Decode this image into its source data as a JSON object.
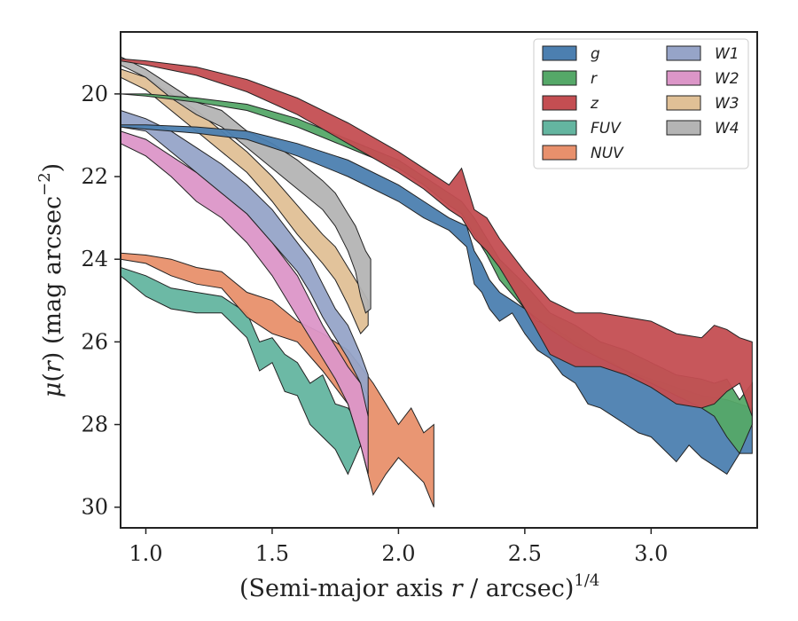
{
  "chart_data": {
    "type": "area",
    "xlabel": "(Semi-major axis r / arcsec)^1/4",
    "ylabel": "μ(r) (mag arcsec^−2)",
    "xlim": [
      0.9,
      3.42
    ],
    "ylim": [
      30.5,
      18.5
    ],
    "y_inverted": true,
    "grid": false,
    "legend_placement": "top-right",
    "xticks": [
      "1.0",
      "1.5",
      "2.0",
      "2.5",
      "3.0"
    ],
    "yticks": [
      "20",
      "22",
      "24",
      "26",
      "28",
      "30"
    ],
    "series": [
      {
        "name": "g",
        "color": "#4c7fb0",
        "x": [
          0.9,
          1.0,
          1.2,
          1.4,
          1.6,
          1.8,
          2.0,
          2.1,
          2.2,
          2.27,
          2.3,
          2.33,
          2.36,
          2.4,
          2.45,
          2.5,
          2.55,
          2.6,
          2.65,
          2.7,
          2.75,
          2.8,
          2.85,
          2.9,
          2.95,
          3.0,
          3.05,
          3.1,
          3.15,
          3.2,
          3.25,
          3.3,
          3.35,
          3.4
        ],
        "y_upper": [
          20.75,
          20.75,
          20.8,
          20.9,
          21.2,
          21.6,
          22.2,
          22.6,
          23.0,
          23.2,
          23.8,
          24.1,
          24.5,
          24.8,
          25.0,
          25.2,
          25.5,
          25.6,
          25.8,
          26.0,
          26.2,
          26.4,
          26.5,
          26.7,
          26.8,
          26.9,
          27.0,
          27.1,
          27.2,
          27.3,
          27.35,
          27.4,
          27.5,
          27.6
        ],
        "y_lower": [
          20.8,
          20.85,
          20.95,
          21.1,
          21.5,
          22.0,
          22.6,
          23.0,
          23.3,
          23.7,
          24.6,
          24.8,
          25.2,
          25.5,
          25.3,
          25.8,
          26.2,
          26.4,
          26.8,
          27.0,
          27.5,
          27.6,
          27.8,
          28.0,
          28.2,
          28.3,
          28.6,
          28.9,
          28.5,
          28.8,
          29.0,
          29.2,
          28.7,
          28.7
        ]
      },
      {
        "name": "r",
        "color": "#55a868",
        "x": [
          0.9,
          1.0,
          1.2,
          1.4,
          1.6,
          1.8,
          2.0,
          2.1,
          2.2,
          2.25,
          2.3,
          2.35,
          2.4,
          2.5,
          2.6,
          2.7,
          2.8,
          2.9,
          3.0,
          3.1,
          3.2,
          3.25,
          3.3,
          3.35,
          3.4
        ],
        "y_upper": [
          20.0,
          20.0,
          20.1,
          20.25,
          20.6,
          21.1,
          21.6,
          22.0,
          22.4,
          22.6,
          23.0,
          23.5,
          24.0,
          24.6,
          25.3,
          25.6,
          26.0,
          26.2,
          26.5,
          26.8,
          26.9,
          27.0,
          26.9,
          27.4,
          27.0
        ],
        "y_lower": [
          20.0,
          20.05,
          20.2,
          20.4,
          20.8,
          21.3,
          21.8,
          22.2,
          22.7,
          22.9,
          23.4,
          23.9,
          24.5,
          25.2,
          25.7,
          26.1,
          26.4,
          26.7,
          27.0,
          27.3,
          27.6,
          27.8,
          28.3,
          28.7,
          28.0
        ]
      },
      {
        "name": "z",
        "color": "#c44e52",
        "x": [
          0.9,
          1.0,
          1.2,
          1.4,
          1.6,
          1.8,
          2.0,
          2.1,
          2.2,
          2.25,
          2.3,
          2.35,
          2.4,
          2.5,
          2.6,
          2.7,
          2.8,
          2.9,
          3.0,
          3.1,
          3.2,
          3.25,
          3.3,
          3.35,
          3.4
        ],
        "y_upper": [
          19.15,
          19.2,
          19.35,
          19.65,
          20.1,
          20.7,
          21.4,
          21.8,
          22.2,
          21.8,
          22.8,
          23.0,
          23.5,
          24.3,
          25.0,
          25.3,
          25.3,
          25.4,
          25.5,
          25.8,
          25.9,
          25.6,
          25.7,
          25.9,
          26.0
        ],
        "y_lower": [
          19.2,
          19.3,
          19.55,
          19.95,
          20.5,
          21.2,
          21.9,
          22.3,
          22.8,
          23.0,
          23.5,
          23.8,
          24.2,
          25.2,
          26.3,
          26.6,
          26.6,
          26.8,
          27.1,
          27.5,
          27.6,
          27.5,
          27.2,
          27.0,
          27.8
        ]
      },
      {
        "name": "FUV",
        "color": "#64b5a0",
        "x": [
          0.9,
          1.0,
          1.1,
          1.2,
          1.3,
          1.4,
          1.45,
          1.5,
          1.55,
          1.6,
          1.65,
          1.7,
          1.75,
          1.8,
          1.85
        ],
        "y_upper": [
          24.2,
          24.4,
          24.7,
          24.8,
          24.9,
          25.3,
          26.0,
          25.9,
          26.3,
          26.5,
          27.0,
          26.8,
          27.5,
          27.6,
          28.0
        ],
        "y_lower": [
          24.4,
          24.9,
          25.2,
          25.3,
          25.3,
          25.9,
          26.7,
          26.5,
          27.2,
          27.3,
          28.0,
          28.3,
          28.6,
          29.2,
          28.5
        ]
      },
      {
        "name": "NUV",
        "color": "#e8906c",
        "x": [
          0.9,
          1.0,
          1.1,
          1.2,
          1.3,
          1.4,
          1.5,
          1.6,
          1.7,
          1.8,
          1.85,
          1.9,
          1.95,
          2.0,
          2.05,
          2.1,
          2.14
        ],
        "y_upper": [
          23.85,
          23.9,
          24.0,
          24.2,
          24.3,
          24.8,
          25.0,
          25.5,
          25.8,
          26.2,
          26.6,
          27.0,
          27.5,
          28.0,
          27.6,
          28.2,
          28.0
        ],
        "y_lower": [
          24.0,
          24.1,
          24.4,
          24.6,
          24.7,
          25.4,
          25.8,
          26.0,
          26.7,
          27.5,
          28.5,
          29.7,
          29.2,
          28.8,
          29.1,
          29.4,
          30.0
        ]
      },
      {
        "name": "W1",
        "color": "#96a4c8",
        "x": [
          0.9,
          1.0,
          1.1,
          1.2,
          1.3,
          1.4,
          1.5,
          1.6,
          1.65,
          1.7,
          1.75,
          1.8,
          1.85,
          1.88
        ],
        "y_upper": [
          20.4,
          20.6,
          20.9,
          21.3,
          21.7,
          22.2,
          22.8,
          23.6,
          24.0,
          24.6,
          25.2,
          25.6,
          26.3,
          26.8
        ],
        "y_lower": [
          20.8,
          20.9,
          21.4,
          21.9,
          22.4,
          22.9,
          23.6,
          24.3,
          24.8,
          25.4,
          25.9,
          26.4,
          27.0,
          27.8
        ]
      },
      {
        "name": "W2",
        "color": "#dc96c8",
        "x": [
          0.9,
          1.0,
          1.1,
          1.2,
          1.3,
          1.4,
          1.5,
          1.6,
          1.65,
          1.7,
          1.75,
          1.8,
          1.85,
          1.88
        ],
        "y_upper": [
          20.9,
          21.1,
          21.5,
          21.9,
          22.4,
          22.9,
          23.6,
          24.4,
          25.0,
          25.6,
          26.1,
          26.6,
          27.0,
          27.3
        ],
        "y_lower": [
          21.2,
          21.5,
          22.0,
          22.6,
          23.0,
          23.6,
          24.4,
          25.4,
          25.9,
          26.4,
          26.9,
          27.5,
          28.5,
          29.2
        ]
      },
      {
        "name": "W3",
        "color": "#e0c096",
        "x": [
          0.9,
          1.0,
          1.1,
          1.2,
          1.3,
          1.4,
          1.5,
          1.6,
          1.7,
          1.75,
          1.8,
          1.85,
          1.88
        ],
        "y_upper": [
          19.4,
          19.6,
          20.0,
          20.4,
          20.9,
          21.4,
          22.0,
          22.7,
          23.4,
          23.7,
          24.2,
          24.7,
          25.0
        ],
        "y_lower": [
          19.6,
          19.9,
          20.4,
          20.9,
          21.4,
          21.9,
          22.6,
          23.4,
          24.1,
          24.5,
          25.1,
          25.8,
          25.6
        ]
      },
      {
        "name": "W4",
        "color": "#b4b4b4",
        "x": [
          0.9,
          1.0,
          1.1,
          1.2,
          1.3,
          1.4,
          1.5,
          1.6,
          1.7,
          1.75,
          1.8,
          1.83,
          1.85,
          1.87,
          1.89
        ],
        "y_upper": [
          19.1,
          19.4,
          19.8,
          20.2,
          20.4,
          20.9,
          21.2,
          21.6,
          22.1,
          22.4,
          22.9,
          23.2,
          23.5,
          23.8,
          24.0
        ],
        "y_lower": [
          19.3,
          19.6,
          20.1,
          20.5,
          20.8,
          21.3,
          21.8,
          22.3,
          22.8,
          23.2,
          23.8,
          24.3,
          24.9,
          25.3,
          25.2
        ]
      }
    ],
    "legend_order": [
      "g",
      "r",
      "z",
      "FUV",
      "NUV",
      "W1",
      "W2",
      "W3",
      "W4"
    ]
  }
}
